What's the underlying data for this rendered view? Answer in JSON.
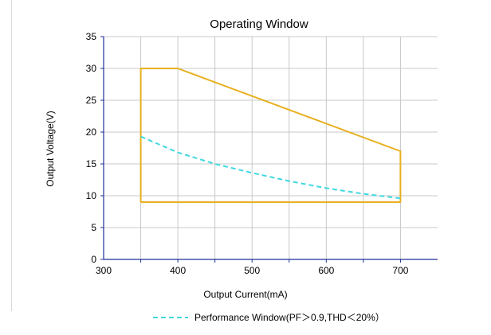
{
  "chart_data": {
    "type": "line",
    "title": "Operating Window",
    "xlabel": "Output Current(mA)",
    "ylabel": "Output Voltage(V)",
    "xlim": [
      300,
      750
    ],
    "ylim": [
      0,
      35
    ],
    "x_ticks": [
      300,
      400,
      500,
      600,
      700
    ],
    "y_ticks": [
      0,
      5,
      10,
      15,
      20,
      25,
      30,
      35
    ],
    "grid": true,
    "legend_position": "bottom",
    "series": [
      {
        "role": "operating-window",
        "color": "#E8B020",
        "style": "solid",
        "points": [
          [
            350,
            9
          ],
          [
            350,
            30
          ],
          [
            400,
            30
          ],
          [
            700,
            17
          ],
          [
            700,
            9
          ],
          [
            350,
            9
          ]
        ]
      },
      {
        "name": "Performance Window(PF＞0.9,THD＜20%）",
        "color": "#40D8E0",
        "style": "dashed",
        "points": [
          [
            350,
            19.3
          ],
          [
            400,
            16.8
          ],
          [
            450,
            15.0
          ],
          [
            500,
            13.6
          ],
          [
            550,
            12.3
          ],
          [
            600,
            11.2
          ],
          [
            650,
            10.3
          ],
          [
            700,
            9.6
          ]
        ]
      }
    ]
  }
}
